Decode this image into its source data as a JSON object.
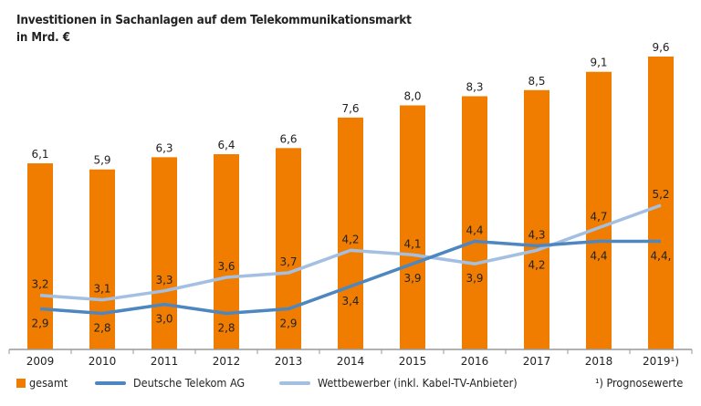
{
  "chart_data": {
    "type": "bar+line",
    "title": "Investitionen in Sachanlagen auf dem Telekommunikationsmarkt",
    "subtitle": "in Mrd. €",
    "categories": [
      "2009",
      "2010",
      "2011",
      "2012",
      "2013",
      "2014",
      "2015",
      "2016",
      "2017",
      "2018",
      "2019¹)"
    ],
    "series": [
      {
        "name": "gesamt",
        "type": "bar",
        "color": "#F07D00",
        "values": [
          6.1,
          5.9,
          6.3,
          6.4,
          6.6,
          7.6,
          8.0,
          8.3,
          8.5,
          9.1,
          9.6
        ],
        "labels": [
          "6,1",
          "5,9",
          "6,3",
          "6,4",
          "6,6",
          "7,6",
          "8,0",
          "8,3",
          "8,5",
          "9,1",
          "9,6"
        ]
      },
      {
        "name": "Deutsche Telekom AG",
        "type": "line",
        "color": "#4E86C0",
        "values": [
          2.9,
          2.8,
          3.0,
          2.8,
          2.9,
          3.4,
          3.9,
          4.4,
          4.3,
          4.4,
          4.4
        ],
        "labels": [
          "2,9",
          "2,8",
          "3,0",
          "2,8",
          "2,9",
          "3,4",
          "3,9",
          "4,4",
          "4,3",
          "4,4",
          "4,4,"
        ]
      },
      {
        "name": "Wettbewerber (inkl. Kabel-TV-Anbieter)",
        "type": "line",
        "color": "#A3BFE2",
        "values": [
          3.2,
          3.1,
          3.3,
          3.6,
          3.7,
          4.2,
          4.1,
          3.9,
          4.2,
          4.7,
          5.2
        ],
        "labels": [
          "3,2",
          "3,1",
          "3,3",
          "3,6",
          "3,7",
          "4,2",
          "4,1",
          "3,9",
          "4,2",
          "4,7",
          "5,2"
        ]
      }
    ],
    "ylim_bars": [
      0,
      9.6
    ],
    "ylim_lines": [
      2,
      8.5
    ],
    "grid": false,
    "legend_position": "bottom",
    "footnote": "¹) Prognosewerte"
  }
}
